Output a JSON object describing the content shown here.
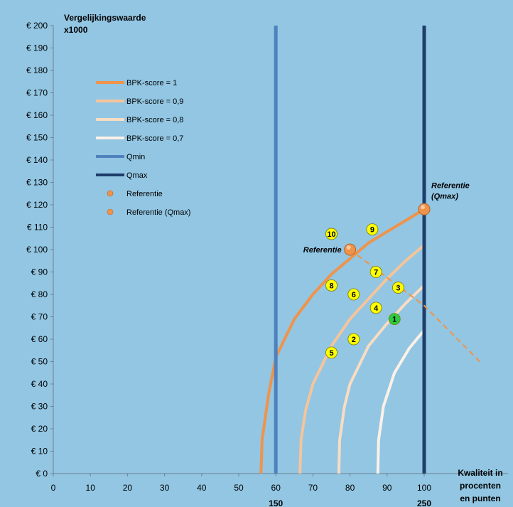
{
  "chart_data": {
    "type": "line",
    "background": "#92c6e3",
    "ylabel": "Vergelijkingswaarde\nx1000",
    "xlabel": "Kwaliteit in\nprocenten\nen punten",
    "xlim": [
      0,
      115
    ],
    "ylim": [
      0,
      200
    ],
    "x_ticks": [
      0,
      10,
      20,
      30,
      40,
      50,
      60,
      70,
      80,
      90,
      100
    ],
    "y_ticks": [
      0,
      10,
      20,
      30,
      40,
      50,
      60,
      70,
      80,
      90,
      100,
      110,
      120,
      130,
      140,
      150,
      160,
      170,
      180,
      190,
      200
    ],
    "y_tick_labels": [
      "€ 0",
      "€ 10",
      "€ 20",
      "€ 30",
      "€ 40",
      "€ 50",
      "€ 60",
      "€ 70",
      "€ 80",
      "€ 90",
      "€ 100",
      "€ 110",
      "€ 120",
      "€ 130",
      "€ 140",
      "€ 150",
      "€ 160",
      "€ 170",
      "€ 180",
      "€ 190",
      "€ 200"
    ],
    "extra_x_labels": [
      {
        "x": 60,
        "text": "150"
      },
      {
        "x": 100,
        "text": "250"
      }
    ],
    "series": [
      {
        "name": "BPK-score = 1",
        "color": "#f0934a",
        "width": 4,
        "x": [
          56.0,
          56.3,
          58.0,
          60.0,
          65.0,
          70.0,
          75.0,
          80.0,
          85.0,
          90.0,
          95.0,
          100.0
        ],
        "y": [
          0,
          15,
          35,
          52,
          69,
          80,
          89,
          96,
          103,
          108,
          113,
          118
        ]
      },
      {
        "name": "BPK-score = 0,9",
        "color": "#f6c49a",
        "width": 4,
        "x": [
          66.5,
          66.8,
          68.0,
          70.0,
          75.0,
          80.0,
          85.0,
          90.0,
          95.0,
          100.0
        ],
        "y": [
          0,
          15,
          28,
          40,
          57,
          69,
          78,
          87,
          95,
          102
        ]
      },
      {
        "name": "BPK-score = 0,8",
        "color": "#f9dcc2",
        "width": 4,
        "x": [
          77.0,
          77.2,
          78.5,
          80.0,
          85.0,
          90.0,
          95.0,
          100.0
        ],
        "y": [
          0,
          15,
          30,
          40,
          57,
          67,
          76,
          84
        ]
      },
      {
        "name": "BPK-score = 0,7",
        "color": "#fbf1e7",
        "width": 4,
        "x": [
          87.5,
          87.7,
          89.0,
          92.0,
          96.0,
          100.0
        ],
        "y": [
          0,
          15,
          30,
          45,
          56,
          64
        ]
      },
      {
        "name": "Qmin",
        "color": "#4f81bd",
        "width": 5,
        "x": [
          60,
          60
        ],
        "y": [
          0,
          200
        ]
      },
      {
        "name": "Qmax",
        "color": "#1f3d6b",
        "width": 5,
        "x": [
          100,
          100
        ],
        "y": [
          0,
          200
        ]
      }
    ],
    "dashed_line": {
      "color": "#f0934a",
      "x": [
        80,
        100,
        115
      ],
      "y": [
        100,
        75,
        50
      ]
    },
    "reference_points": [
      {
        "name": "Referentie",
        "x": 80,
        "y": 100,
        "label": "Referentie"
      },
      {
        "name": "Referentie (Qmax)",
        "x": 100,
        "y": 118,
        "label": "Referentie\n(Qmax)"
      }
    ],
    "numbered_points": [
      {
        "label": "1",
        "x": 92,
        "y": 69,
        "color": "#2ecc40"
      },
      {
        "label": "2",
        "x": 81,
        "y": 60,
        "color": "#ffff00"
      },
      {
        "label": "3",
        "x": 93,
        "y": 83,
        "color": "#ffff00"
      },
      {
        "label": "4",
        "x": 87,
        "y": 74,
        "color": "#ffff00"
      },
      {
        "label": "5",
        "x": 75,
        "y": 54,
        "color": "#ffff00"
      },
      {
        "label": "6",
        "x": 81,
        "y": 80,
        "color": "#ffff00"
      },
      {
        "label": "7",
        "x": 87,
        "y": 90,
        "color": "#ffff00"
      },
      {
        "label": "8",
        "x": 75,
        "y": 84,
        "color": "#ffff00"
      },
      {
        "label": "9",
        "x": 86,
        "y": 109,
        "color": "#ffff00"
      },
      {
        "label": "10",
        "x": 75,
        "y": 107,
        "color": "#ffff00"
      }
    ],
    "legend": {
      "placement": "top-left",
      "entries": [
        {
          "label": "BPK-score = 1",
          "kind": "line",
          "color": "#f0934a"
        },
        {
          "label": "BPK-score = 0,9",
          "kind": "line",
          "color": "#f6c49a"
        },
        {
          "label": "BPK-score = 0,8",
          "kind": "line",
          "color": "#f9dcc2"
        },
        {
          "label": "BPK-score = 0,7",
          "kind": "line",
          "color": "#fbf1e7"
        },
        {
          "label": "Qmin",
          "kind": "line",
          "color": "#4f81bd"
        },
        {
          "label": "Qmax",
          "kind": "line",
          "color": "#1f3d6b"
        },
        {
          "label": "Referentie",
          "kind": "marker",
          "color": "#f0934a"
        },
        {
          "label": "Referentie (Qmax)",
          "kind": "marker",
          "color": "#f0934a"
        }
      ]
    },
    "grid": false
  }
}
